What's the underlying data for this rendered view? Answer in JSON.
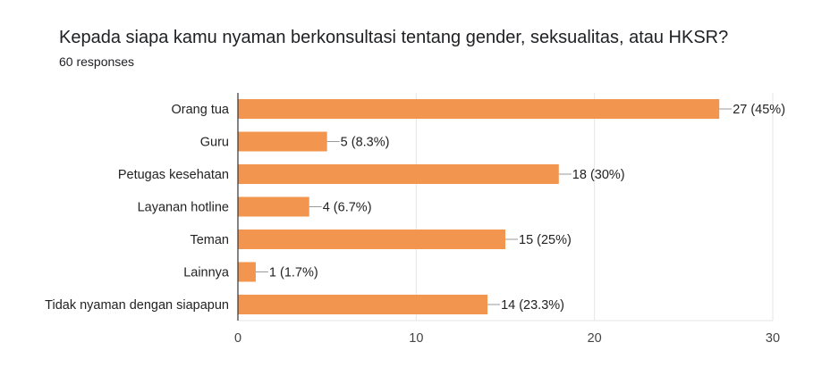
{
  "header": {
    "title": "Kepada siapa kamu nyaman berkonsultasi tentang gender, seksualitas, atau HKSR?",
    "responses": "60 responses"
  },
  "colors": {
    "bar": "#f2954e",
    "grid": "#e6e6e6",
    "axis": "#333333",
    "connector": "#999999"
  },
  "chart_data": {
    "type": "bar",
    "orientation": "horizontal",
    "categories": [
      "Orang tua",
      "Guru",
      "Petugas kesehatan",
      "Layanan hotline",
      "Teman",
      "Lainnya",
      "Tidak nyaman dengan siapapun"
    ],
    "values": [
      27,
      5,
      18,
      4,
      15,
      1,
      14
    ],
    "data_labels": [
      "27 (45%)",
      "5 (8.3%)",
      "18 (30%)",
      "4 (6.7%)",
      "15 (25%)",
      "1 (1.7%)",
      "14 (23.3%)"
    ],
    "xlim": [
      0,
      30
    ],
    "xticks": [
      0,
      10,
      20,
      30
    ],
    "grid": true
  }
}
